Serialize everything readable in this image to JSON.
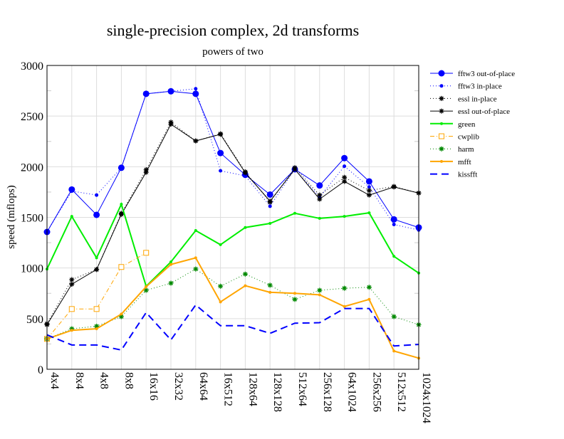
{
  "chart_data": {
    "type": "line",
    "title": "single-precision complex, 2d transforms",
    "subtitle": "powers of two",
    "xlabel": "",
    "ylabel": "speed (mflops)",
    "ylim": [
      0,
      3000
    ],
    "yticks": [
      0,
      500,
      1000,
      1500,
      2000,
      2500,
      3000
    ],
    "grid": true,
    "legend_position": "right",
    "categories": [
      "4x4",
      "8x4",
      "4x8",
      "8x8",
      "16x16",
      "32x32",
      "64x64",
      "16x512",
      "128x64",
      "128x128",
      "512x64",
      "256x128",
      "64x1024",
      "256x256",
      "512x512",
      "1024x1024"
    ],
    "series": [
      {
        "name": "fftw3 out-of-place",
        "color": "#0000ff",
        "dash": "",
        "marker": "bigdot",
        "width": 1,
        "values": [
          1356,
          1775,
          1525,
          1990,
          2720,
          2745,
          2720,
          2135,
          1920,
          1725,
          1975,
          1815,
          2085,
          1855,
          1480,
          1400
        ]
      },
      {
        "name": "fftw3 in-place",
        "color": "#0000ff",
        "dash": "1,3",
        "marker": "dot",
        "width": 1,
        "values": [
          1356,
          1760,
          1720,
          1990,
          2720,
          2745,
          2770,
          1960,
          1910,
          1610,
          1975,
          1700,
          2005,
          1800,
          1430,
          1375
        ]
      },
      {
        "name": "essl in-place",
        "color": "#000000",
        "dash": "1,3",
        "marker": "star",
        "width": 1,
        "values": [
          450,
          885,
          985,
          1540,
          1970,
          2440,
          2255,
          2325,
          1950,
          1650,
          1990,
          1720,
          1895,
          1765,
          1805,
          1740
        ]
      },
      {
        "name": "essl out-of-place",
        "color": "#000000",
        "dash": "",
        "marker": "star",
        "width": 1,
        "values": [
          440,
          840,
          985,
          1530,
          1945,
          2420,
          2255,
          2320,
          1940,
          1660,
          1975,
          1680,
          1855,
          1720,
          1800,
          1740
        ]
      },
      {
        "name": "green",
        "color": "#00ee00",
        "dash": "",
        "marker": "dot",
        "width": 2,
        "values": [
          990,
          1510,
          1100,
          1630,
          820,
          1060,
          1370,
          1230,
          1400,
          1440,
          1540,
          1490,
          1510,
          1545,
          1115,
          950
        ]
      },
      {
        "name": "cwplib",
        "color": "#ffa500",
        "dash": "6,3,1,3",
        "marker": "square",
        "width": 1,
        "values": [
          300,
          595,
          595,
          1010,
          1150,
          null,
          null,
          null,
          null,
          null,
          null,
          null,
          null,
          null,
          null,
          null
        ]
      },
      {
        "name": "harm",
        "color": "#008800",
        "dash": "1,3",
        "marker": "star",
        "width": 1,
        "values": [
          300,
          400,
          425,
          520,
          780,
          850,
          990,
          820,
          940,
          830,
          690,
          780,
          800,
          810,
          520,
          440
        ]
      },
      {
        "name": "mfft",
        "color": "#ffa500",
        "dash": "",
        "marker": "dot",
        "width": 2,
        "values": [
          300,
          385,
          400,
          545,
          815,
          1035,
          1100,
          665,
          825,
          760,
          750,
          735,
          620,
          690,
          180,
          110
        ]
      },
      {
        "name": "kissfft",
        "color": "#0000ff",
        "dash": "10,6",
        "marker": "none",
        "width": 2,
        "values": [
          340,
          240,
          240,
          190,
          560,
          290,
          635,
          430,
          430,
          355,
          455,
          460,
          600,
          600,
          230,
          245
        ]
      }
    ]
  }
}
